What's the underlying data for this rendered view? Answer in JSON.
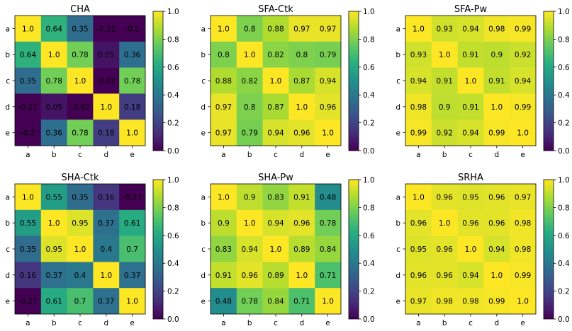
{
  "figure": {
    "row_labels": [
      "a",
      "b",
      "c",
      "d",
      "e"
    ],
    "col_labels": [
      "a",
      "b",
      "c",
      "d",
      "e"
    ],
    "colorbar": {
      "ticks": [
        "0.0",
        "0.2",
        "0.4",
        "0.6",
        "0.8",
        "1.0"
      ],
      "range": [
        0,
        1
      ],
      "colormap": "viridis"
    }
  },
  "chart_data": [
    {
      "type": "heatmap",
      "title": "CHA",
      "rows": [
        "a",
        "b",
        "c",
        "d",
        "e"
      ],
      "cols": [
        "a",
        "b",
        "c",
        "d",
        "e"
      ],
      "vmin": 0,
      "vmax": 1,
      "values": [
        [
          1.0,
          0.64,
          0.35,
          -0.21,
          -0.2
        ],
        [
          0.64,
          1.0,
          0.78,
          0.05,
          0.36
        ],
        [
          0.35,
          0.78,
          1.0,
          -0.02,
          0.78
        ],
        [
          -0.21,
          0.05,
          -0.02,
          1.0,
          0.18
        ],
        [
          -0.2,
          0.36,
          0.78,
          0.18,
          1.0
        ]
      ]
    },
    {
      "type": "heatmap",
      "title": "SFA-Ctk",
      "rows": [
        "a",
        "b",
        "c",
        "d",
        "e"
      ],
      "cols": [
        "a",
        "b",
        "c",
        "d",
        "e"
      ],
      "vmin": 0,
      "vmax": 1,
      "values": [
        [
          1.0,
          0.8,
          0.88,
          0.97,
          0.97
        ],
        [
          0.8,
          1.0,
          0.82,
          0.8,
          0.79
        ],
        [
          0.88,
          0.82,
          1.0,
          0.87,
          0.94
        ],
        [
          0.97,
          0.8,
          0.87,
          1.0,
          0.96
        ],
        [
          0.97,
          0.79,
          0.94,
          0.96,
          1.0
        ]
      ]
    },
    {
      "type": "heatmap",
      "title": "SFA-Pw",
      "rows": [
        "a",
        "b",
        "c",
        "d",
        "e"
      ],
      "cols": [
        "a",
        "b",
        "c",
        "d",
        "e"
      ],
      "vmin": 0,
      "vmax": 1,
      "values": [
        [
          1.0,
          0.93,
          0.94,
          0.98,
          0.99
        ],
        [
          0.93,
          1.0,
          0.91,
          0.9,
          0.92
        ],
        [
          0.94,
          0.91,
          1.0,
          0.91,
          0.94
        ],
        [
          0.98,
          0.9,
          0.91,
          1.0,
          0.99
        ],
        [
          0.99,
          0.92,
          0.94,
          0.99,
          1.0
        ]
      ]
    },
    {
      "type": "heatmap",
      "title": "SHA-Ctk",
      "rows": [
        "a",
        "b",
        "c",
        "d",
        "e"
      ],
      "cols": [
        "a",
        "b",
        "c",
        "d",
        "e"
      ],
      "vmin": 0,
      "vmax": 1,
      "values": [
        [
          1.0,
          0.55,
          0.35,
          0.16,
          -0.27
        ],
        [
          0.55,
          1.0,
          0.95,
          0.37,
          0.61
        ],
        [
          0.35,
          0.95,
          1.0,
          0.4,
          0.7
        ],
        [
          0.16,
          0.37,
          0.4,
          1.0,
          0.37
        ],
        [
          -0.27,
          0.61,
          0.7,
          0.37,
          1.0
        ]
      ]
    },
    {
      "type": "heatmap",
      "title": "SHA-Pw",
      "rows": [
        "a",
        "b",
        "c",
        "d",
        "e"
      ],
      "cols": [
        "a",
        "b",
        "c",
        "d",
        "e"
      ],
      "vmin": 0,
      "vmax": 1,
      "values": [
        [
          1.0,
          0.9,
          0.83,
          0.91,
          0.48
        ],
        [
          0.9,
          1.0,
          0.94,
          0.96,
          0.78
        ],
        [
          0.83,
          0.94,
          1.0,
          0.89,
          0.84
        ],
        [
          0.91,
          0.96,
          0.89,
          1.0,
          0.71
        ],
        [
          0.48,
          0.78,
          0.84,
          0.71,
          1.0
        ]
      ]
    },
    {
      "type": "heatmap",
      "title": "SRHA",
      "rows": [
        "a",
        "b",
        "c",
        "d",
        "e"
      ],
      "cols": [
        "a",
        "b",
        "c",
        "d",
        "e"
      ],
      "vmin": 0,
      "vmax": 1,
      "values": [
        [
          1.0,
          0.96,
          0.95,
          0.96,
          0.97
        ],
        [
          0.96,
          1.0,
          0.96,
          0.96,
          0.98
        ],
        [
          0.95,
          0.96,
          1.0,
          0.94,
          0.98
        ],
        [
          0.96,
          0.96,
          0.94,
          1.0,
          0.99
        ],
        [
          0.97,
          0.98,
          0.98,
          0.99,
          1.0
        ]
      ]
    }
  ]
}
